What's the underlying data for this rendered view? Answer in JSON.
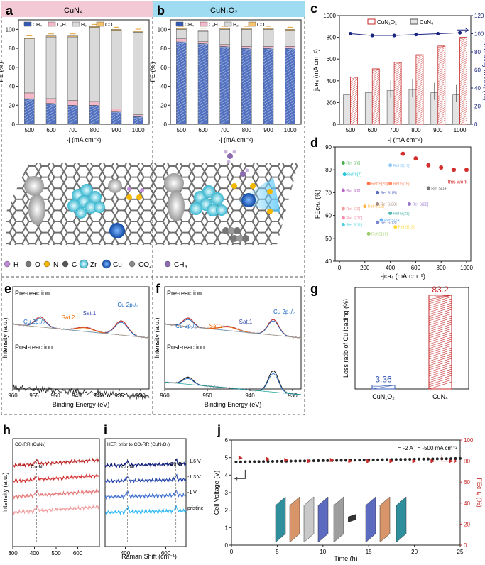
{
  "panels": {
    "a": {
      "letter": "a",
      "title": "CuN₄"
    },
    "b": {
      "letter": "b",
      "title": "CuN₁O₂"
    },
    "c": {
      "letter": "c"
    },
    "d": {
      "letter": "d"
    },
    "e": {
      "letter": "e"
    },
    "f": {
      "letter": "f"
    },
    "g": {
      "letter": "g"
    },
    "h": {
      "letter": "h"
    },
    "i": {
      "letter": "i"
    },
    "j": {
      "letter": "j"
    }
  },
  "colors": {
    "ch4": "#3358b5",
    "c2h4": "#f5b8c8",
    "h2": "#d9d9d9",
    "co": "#f6c36a",
    "cun4_header": "#f4c9d6",
    "cun1o2_header": "#9fdcf2",
    "red": "#c62828",
    "navy": "#1a237e"
  },
  "fe_legend": [
    "CH₄",
    "C₂H₄",
    "H₂",
    "CO"
  ],
  "atom_legend": [
    "H",
    "O",
    "N",
    "C",
    "Zr",
    "Cu",
    "CO₂",
    "CH₄"
  ],
  "chart_data": [
    {
      "id": "a",
      "type": "bar",
      "title": "CuN₄",
      "categories": [
        "500",
        "600",
        "700",
        "800",
        "900",
        "1000"
      ],
      "series": [
        {
          "name": "CH₄",
          "values": [
            27,
            22,
            20,
            20,
            13,
            8
          ]
        },
        {
          "name": "C₂H₄",
          "values": [
            6,
            5,
            5,
            4,
            3,
            2
          ]
        },
        {
          "name": "H₂",
          "values": [
            57,
            65,
            67,
            78,
            83,
            87
          ]
        },
        {
          "name": "CO",
          "values": [
            1,
            1,
            1,
            1,
            1,
            1
          ]
        }
      ],
      "xlabel": "-j (mA cm⁻²)",
      "ylabel": "FE (%)",
      "ylim": [
        0,
        110
      ],
      "yticks": [
        "0",
        "20",
        "40",
        "60",
        "80",
        "100"
      ]
    },
    {
      "id": "b",
      "type": "bar",
      "title": "CuN₁O₂",
      "categories": [
        "500",
        "600",
        "700",
        "800",
        "900",
        "1000"
      ],
      "series": [
        {
          "name": "CH₄",
          "values": [
            87,
            85,
            82,
            80,
            80,
            80
          ]
        },
        {
          "name": "C₂H₄",
          "values": [
            3,
            2,
            2,
            2,
            2,
            2
          ]
        },
        {
          "name": "H₂",
          "values": [
            10,
            11,
            16,
            18,
            18,
            17
          ]
        },
        {
          "name": "CO",
          "values": [
            1,
            1,
            1,
            1,
            1,
            1
          ]
        }
      ],
      "xlabel": "-j (mA cm⁻²)",
      "ylabel": "FE (%)",
      "ylim": [
        0,
        110
      ],
      "yticks": [
        "0",
        "20",
        "40",
        "60",
        "80",
        "100"
      ]
    },
    {
      "id": "c",
      "type": "bar",
      "categories": [
        "500",
        "600",
        "700",
        "800",
        "900",
        "1000"
      ],
      "series": [
        {
          "name": "CuN₁O₂",
          "values": [
            435,
            510,
            570,
            640,
            720,
            800
          ]
        },
        {
          "name": "CuN₄",
          "values": [
            270,
            290,
            310,
            320,
            290,
            270
          ]
        }
      ],
      "line_series": {
        "name": "Selectivity of CH₄",
        "values": [
          100,
          98,
          98,
          99,
          100,
          101
        ]
      },
      "xlabel": "-j (mA cm⁻²)",
      "ylabel": "jᴄʜ₄ (mA cm⁻²)",
      "y2label": "Selectivity of CH₄ (%)",
      "ylim": [
        0,
        1000
      ],
      "y2lim": [
        0,
        120
      ],
      "yticks": [
        "0",
        "200",
        "400",
        "600",
        "800",
        "1000"
      ],
      "y2ticks": [
        "0",
        "20",
        "40",
        "60",
        "80",
        "100",
        "120"
      ]
    },
    {
      "id": "d",
      "type": "scatter",
      "this_work": {
        "label": "this work",
        "x": [
          500,
          600,
          700,
          800,
          900,
          1000
        ],
        "y": [
          87,
          85,
          82,
          81,
          80,
          80
        ]
      },
      "refs": [
        {
          "label": "Ref S[6]",
          "x": 30,
          "y": 83
        },
        {
          "label": "Ref S[7]",
          "x": 40,
          "y": 78
        },
        {
          "label": "Ref S[8]",
          "x": 30,
          "y": 71
        },
        {
          "label": "Ref S[9]",
          "x": 30,
          "y": 63
        },
        {
          "label": "Ref S[10]",
          "x": 30,
          "y": 59
        },
        {
          "label": "Ref S[11]",
          "x": 30,
          "y": 56
        },
        {
          "label": "Ref S[12]",
          "x": 200,
          "y": 64
        },
        {
          "label": "Ref S[13]",
          "x": 300,
          "y": 57
        },
        {
          "label": "Ref S[14]",
          "x": 700,
          "y": 72
        },
        {
          "label": "Ref S[15]",
          "x": 300,
          "y": 70
        },
        {
          "label": "Ref S[16]",
          "x": 400,
          "y": 74
        },
        {
          "label": "Ref S[17]",
          "x": 400,
          "y": 82
        },
        {
          "label": "Ref S[18]",
          "x": 440,
          "y": 55
        },
        {
          "label": "Ref S[19]",
          "x": 230,
          "y": 52
        },
        {
          "label": "Ref S[20]",
          "x": 230,
          "y": 74
        },
        {
          "label": "Ref S[21]",
          "x": 400,
          "y": 61
        },
        {
          "label": "Ref S[22]",
          "x": 550,
          "y": 65
        },
        {
          "label": "Ref S[23]",
          "x": 300,
          "y": 65
        },
        {
          "label": "Ref S[24]",
          "x": 330,
          "y": 58
        }
      ],
      "xlabel": "-jᴄʜ₄ (mA·cm⁻²)",
      "ylabel": "FEᴄʜ₄ (%)",
      "xlim": [
        0,
        1000
      ],
      "ylim": [
        40,
        90
      ],
      "xticks": [
        "0",
        "200",
        "400",
        "600",
        "800",
        "1000"
      ],
      "yticks": [
        "40",
        "50",
        "60",
        "70",
        "80",
        "90"
      ]
    },
    {
      "id": "e",
      "type": "line",
      "title_pre": "Pre-reaction",
      "title_post": "Post-reaction",
      "annotations": [
        "Cu 2p₃/₂",
        "Sat.1",
        "Sat.2",
        "Cu 2p₁/₂"
      ],
      "xlabel": "Binding Energy (eV)",
      "ylabel": "Intensity (a.u.)",
      "xlim": [
        960,
        928
      ],
      "xticks": [
        "960",
        "955",
        "950",
        "945",
        "940",
        "935",
        "930"
      ]
    },
    {
      "id": "f",
      "type": "line",
      "title_pre": "Pre-reaction",
      "title_post": "Post-reaction",
      "annotations": [
        "Cu 2p₁/₂",
        "Sat.2",
        "Sat.1",
        "Cu 2p₃/₂"
      ],
      "xlabel": "Binding Energy (eV)",
      "ylabel": "Intensity (a.u.)",
      "xlim": [
        960,
        928
      ],
      "xticks": [
        "960",
        "950",
        "940",
        "930"
      ]
    },
    {
      "id": "g",
      "type": "bar",
      "categories": [
        "CuN₁O₂",
        "CuN₄"
      ],
      "values": [
        3.36,
        83.2
      ],
      "value_labels": [
        "3.36",
        "83.2"
      ],
      "ylabel": "Loss ratio of Cu loading (%)",
      "ylim": [
        0,
        90
      ]
    },
    {
      "id": "h",
      "type": "line",
      "title": "CO₂RR (CuN₄)",
      "annotation": "Cu-N",
      "xlabel": "Raman Shift (cm⁻¹)",
      "ylabel": "Intensity (a.u.)",
      "xlim": [
        300,
        700
      ],
      "xticks": [
        "300",
        "400",
        "500",
        "600"
      ]
    },
    {
      "id": "i",
      "type": "line",
      "title": "HER prior to CO₂RR (CuN₁O₂)",
      "annotations": [
        "Cu-N",
        "Cu-O"
      ],
      "curve_labels": [
        "-1.6 V",
        "-1.3 V",
        "-1 V",
        "pristine"
      ],
      "xlim": [
        300,
        700
      ],
      "xticks": [
        "400",
        "600"
      ]
    },
    {
      "id": "j",
      "type": "scatter",
      "condition": "I = -2 A   j = -500 mA cm⁻²",
      "cell_voltage": {
        "x_start": 0.5,
        "x_step": 0.5,
        "count": 50,
        "values_from": 4.75,
        "values_to": 4.95
      },
      "fe_ch4": {
        "x": [
          1,
          4,
          6,
          8.5,
          11,
          13,
          15,
          17.5,
          20,
          22,
          24
        ],
        "y": [
          83,
          82,
          81,
          80,
          81,
          80,
          80,
          80,
          80,
          80,
          80
        ]
      },
      "xlabel": "Time (h)",
      "ylabel": "Cell Voltage (V)",
      "y2label": "FEᴄʜ₄ (%)",
      "xlim": [
        0,
        25
      ],
      "ylim": [
        0,
        6
      ],
      "y2lim": [
        0,
        100
      ],
      "xticks": [
        "0",
        "5",
        "10",
        "15",
        "20",
        "25"
      ],
      "yticks": [
        "0",
        "1",
        "2",
        "3",
        "4",
        "5",
        "6"
      ],
      "y2ticks": [
        "0",
        "20",
        "40",
        "60",
        "80",
        "100"
      ]
    }
  ]
}
